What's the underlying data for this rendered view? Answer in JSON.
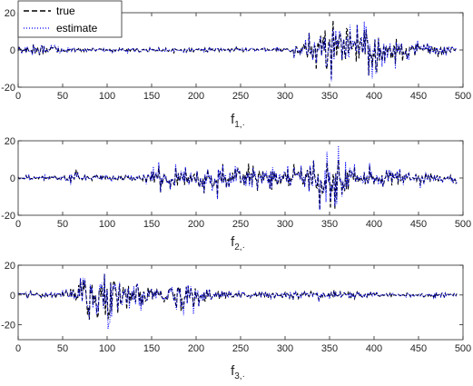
{
  "chart_data": [
    {
      "type": "line",
      "xlabel_main": "f",
      "xlabel_sub": "1,·",
      "xlim": [
        0,
        500
      ],
      "ylim": [
        -20,
        20
      ],
      "xticks": [
        "0",
        "50",
        "100",
        "150",
        "200",
        "250",
        "300",
        "350",
        "400",
        "450",
        "500"
      ],
      "yticks": [
        "-20",
        "0",
        "20"
      ],
      "legend": {
        "placement": "top-left",
        "entries": [
          "true",
          "estimate"
        ]
      },
      "grid": false,
      "envelope": [
        {
          "x": 0,
          "amp": 2.5
        },
        {
          "x": 50,
          "amp": 2.5
        },
        {
          "x": 60,
          "amp": 1.0
        },
        {
          "x": 300,
          "amp": 1.0
        },
        {
          "x": 315,
          "amp": 3.0
        },
        {
          "x": 330,
          "amp": 8.0
        },
        {
          "x": 345,
          "amp": 12.0
        },
        {
          "x": 400,
          "amp": 12.0
        },
        {
          "x": 430,
          "amp": 8.0
        },
        {
          "x": 450,
          "amp": 4.0
        },
        {
          "x": 493,
          "amp": 1.5
        }
      ],
      "series": [
        {
          "name": "true",
          "color": "#000000",
          "style": "dashed"
        },
        {
          "name": "estimate",
          "color": "#0000ff",
          "style": "dotted"
        }
      ]
    },
    {
      "type": "line",
      "xlabel_main": "f",
      "xlabel_sub": "2,·",
      "xlim": [
        0,
        500
      ],
      "ylim": [
        -20,
        20
      ],
      "xticks": [
        "0",
        "50",
        "100",
        "150",
        "200",
        "250",
        "300",
        "350",
        "400",
        "450",
        "500"
      ],
      "yticks": [
        "-20",
        "0",
        "20"
      ],
      "grid": false,
      "envelope": [
        {
          "x": 0,
          "amp": 1.0
        },
        {
          "x": 55,
          "amp": 1.0
        },
        {
          "x": 65,
          "amp": 4.0
        },
        {
          "x": 75,
          "amp": 1.5
        },
        {
          "x": 140,
          "amp": 1.5
        },
        {
          "x": 150,
          "amp": 4.0
        },
        {
          "x": 180,
          "amp": 6.0
        },
        {
          "x": 220,
          "amp": 5.0
        },
        {
          "x": 265,
          "amp": 6.0
        },
        {
          "x": 300,
          "amp": 4.0
        },
        {
          "x": 320,
          "amp": 6.0
        },
        {
          "x": 340,
          "amp": 13.0
        },
        {
          "x": 360,
          "amp": 11.0
        },
        {
          "x": 380,
          "amp": 6.0
        },
        {
          "x": 420,
          "amp": 3.0
        },
        {
          "x": 493,
          "amp": 2.0
        }
      ],
      "series": [
        {
          "name": "true",
          "color": "#000000",
          "style": "dashed"
        },
        {
          "name": "estimate",
          "color": "#0000ff",
          "style": "dotted"
        }
      ]
    },
    {
      "type": "line",
      "xlabel_main": "f",
      "xlabel_sub": "3,·",
      "xlim": [
        0,
        500
      ],
      "ylim": [
        -30,
        20
      ],
      "xticks": [
        "0",
        "50",
        "100",
        "150",
        "200",
        "250",
        "300",
        "350",
        "400",
        "450",
        "500"
      ],
      "yticks": [
        "-20",
        "0",
        "20"
      ],
      "grid": false,
      "envelope": [
        {
          "x": 0,
          "amp": 1.5
        },
        {
          "x": 50,
          "amp": 2.0
        },
        {
          "x": 65,
          "amp": 6.0
        },
        {
          "x": 80,
          "amp": 16.0
        },
        {
          "x": 95,
          "amp": 18.0
        },
        {
          "x": 120,
          "amp": 12.0
        },
        {
          "x": 140,
          "amp": 7.0
        },
        {
          "x": 170,
          "amp": 8.0
        },
        {
          "x": 200,
          "amp": 7.0
        },
        {
          "x": 215,
          "amp": 3.0
        },
        {
          "x": 260,
          "amp": 2.0
        },
        {
          "x": 330,
          "amp": 2.5
        },
        {
          "x": 400,
          "amp": 1.5
        },
        {
          "x": 493,
          "amp": 1.0
        }
      ],
      "series": [
        {
          "name": "true",
          "color": "#000000",
          "style": "dashed"
        },
        {
          "name": "estimate",
          "color": "#0000ff",
          "style": "dotted"
        }
      ]
    }
  ]
}
